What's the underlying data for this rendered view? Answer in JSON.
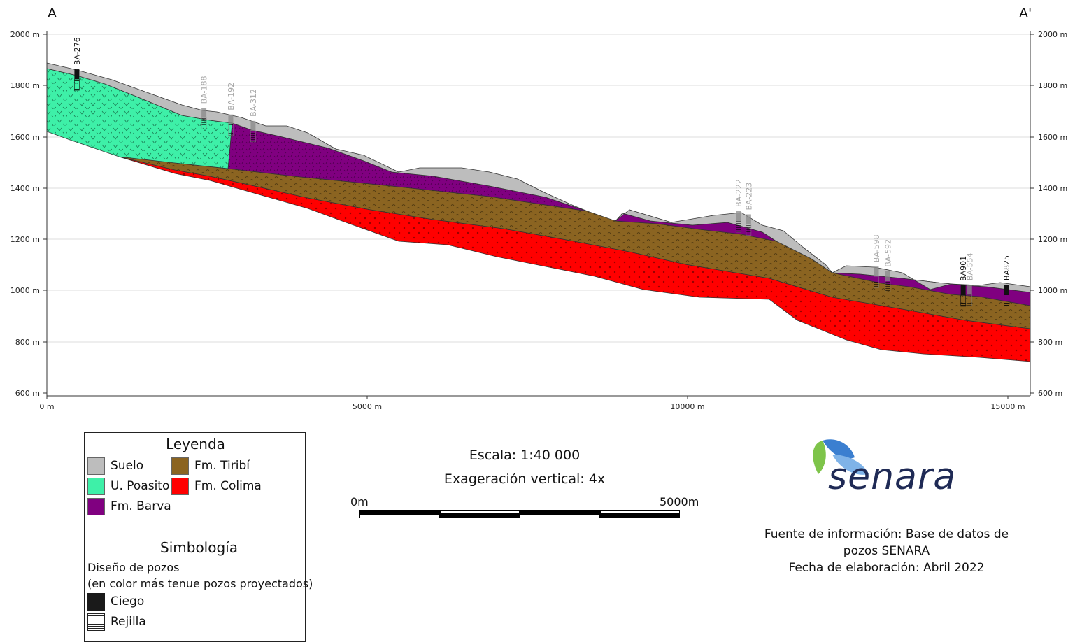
{
  "profile": {
    "start_label": "A",
    "end_label": "A'",
    "y_axis": {
      "min": 600,
      "max": 2000,
      "ticks": [
        "600 m",
        "800 m",
        "1000 m",
        "1200 m",
        "1400 m",
        "1600 m",
        "1800 m",
        "2000 m"
      ]
    },
    "x_axis": {
      "min": 0,
      "max": 15400,
      "ticks": [
        "0 m",
        "5000 m",
        "10000 m",
        "15000 m"
      ]
    },
    "colors": {
      "suelo": "#bdbdbd",
      "poasito": "#3ef0a8",
      "barva": "#800080",
      "tiribi": "#8b6421",
      "colima": "#ff0000",
      "grid": "#dddddd"
    },
    "wells": [
      {
        "name": "BA-276",
        "distance_m": 470,
        "projected": false
      },
      {
        "name": "BA-188",
        "distance_m": 2460,
        "projected": true
      },
      {
        "name": "BA-192",
        "distance_m": 2880,
        "projected": true
      },
      {
        "name": "BA-312",
        "distance_m": 3230,
        "projected": true
      },
      {
        "name": "BA-222",
        "distance_m": 10830,
        "projected": true
      },
      {
        "name": "BA-223",
        "distance_m": 10990,
        "projected": true
      },
      {
        "name": "BA-598",
        "distance_m": 12990,
        "projected": true
      },
      {
        "name": "BA-592",
        "distance_m": 13170,
        "projected": true
      },
      {
        "name": "BA901",
        "distance_m": 14350,
        "projected": false
      },
      {
        "name": "BA-554",
        "distance_m": 14450,
        "projected": true
      },
      {
        "name": "BA825",
        "distance_m": 15030,
        "projected": false
      }
    ]
  },
  "legend": {
    "title": "Leyenda",
    "items": [
      {
        "label": "Suelo",
        "color": "#bdbdbd"
      },
      {
        "label": "Fm. Tiribí",
        "color": "#8b6421"
      },
      {
        "label": "U. Poasito",
        "color": "#3ef0a8"
      },
      {
        "label": "Fm. Colima",
        "color": "#ff0000"
      },
      {
        "label": "Fm. Barva",
        "color": "#800080"
      }
    ]
  },
  "symbology": {
    "title": "Simbología",
    "subtitle": "Diseño de pozos",
    "note": "(en color más tenue pozos proyectados)",
    "ciego_label": "Ciego",
    "rejilla_label": "Rejilla"
  },
  "scale": {
    "scale_text": "Escala: 1:40 000",
    "exaggeration_text": "Exageración vertical: 4x",
    "bar_start": "0m",
    "bar_end": "5000m"
  },
  "logo": {
    "text": "senara"
  },
  "source": {
    "line1": "Fuente de información: Base de datos de",
    "line2": "pozos SENARA",
    "line3": "Fecha de elaboración: Abril 2022"
  }
}
